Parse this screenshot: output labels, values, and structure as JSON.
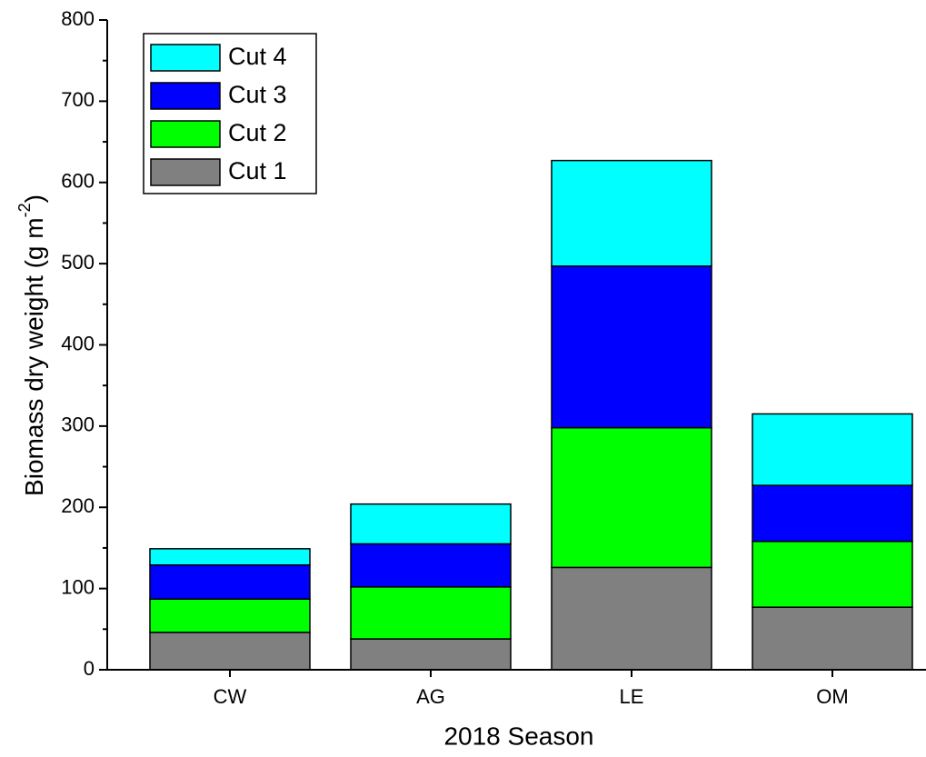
{
  "chart_data": {
    "type": "stacked-bar",
    "xlabel": "2018 Season",
    "ylabel": {
      "text": "Biomass dry weight (g m",
      "superscript": "-2",
      "close": ")"
    },
    "categories": [
      "CW",
      "AG",
      "LE",
      "OM"
    ],
    "series": [
      {
        "name": "Cut 1",
        "color": "#808080",
        "values": [
          46,
          38,
          126,
          77
        ]
      },
      {
        "name": "Cut 2",
        "color": "#00ff00",
        "values": [
          41,
          64,
          172,
          81
        ]
      },
      {
        "name": "Cut 3",
        "color": "#0000ff",
        "values": [
          42,
          53,
          199,
          69
        ]
      },
      {
        "name": "Cut 4",
        "color": "#00ffff",
        "values": [
          20,
          49,
          130,
          88
        ]
      }
    ],
    "ylim": [
      0,
      800
    ],
    "yticks": [
      0,
      100,
      200,
      300,
      400,
      500,
      600,
      700,
      800
    ],
    "legend": "top-left"
  }
}
